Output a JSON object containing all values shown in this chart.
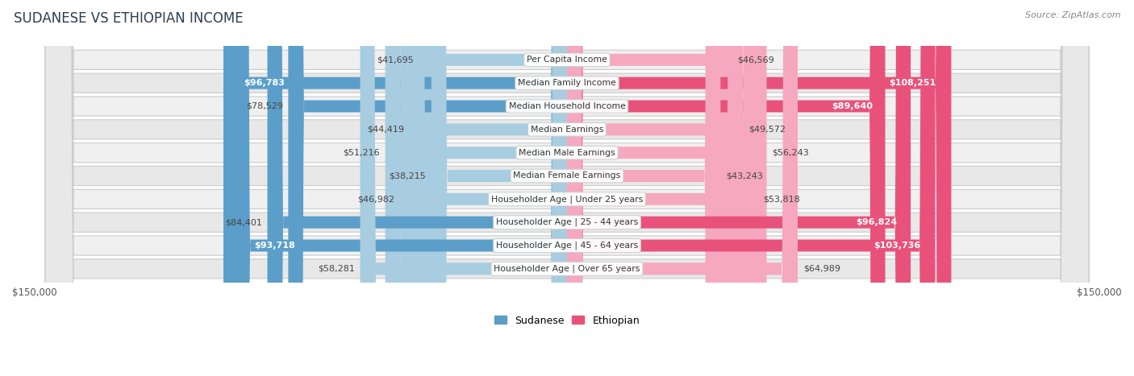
{
  "title": "SUDANESE VS ETHIOPIAN INCOME",
  "source": "Source: ZipAtlas.com",
  "categories": [
    "Per Capita Income",
    "Median Family Income",
    "Median Household Income",
    "Median Earnings",
    "Median Male Earnings",
    "Median Female Earnings",
    "Householder Age | Under 25 years",
    "Householder Age | 25 - 44 years",
    "Householder Age | 45 - 64 years",
    "Householder Age | Over 65 years"
  ],
  "sudanese": [
    41695,
    96783,
    78529,
    44419,
    51216,
    38215,
    46982,
    84401,
    93718,
    58281
  ],
  "ethiopian": [
    46569,
    108251,
    89640,
    49572,
    56243,
    43243,
    53818,
    96824,
    103736,
    64989
  ],
  "sudanese_labels": [
    "$41,695",
    "$96,783",
    "$78,529",
    "$44,419",
    "$51,216",
    "$38,215",
    "$46,982",
    "$84,401",
    "$93,718",
    "$58,281"
  ],
  "ethiopian_labels": [
    "$46,569",
    "$108,251",
    "$89,640",
    "$49,572",
    "$56,243",
    "$43,243",
    "$53,818",
    "$96,824",
    "$103,736",
    "$64,989"
  ],
  "sud_inside": [
    false,
    true,
    false,
    false,
    false,
    false,
    false,
    false,
    true,
    false
  ],
  "eth_inside": [
    false,
    true,
    true,
    false,
    false,
    false,
    false,
    true,
    true,
    false
  ],
  "max_val": 150000,
  "sudanese_color_light": "#a8cce0",
  "sudanese_color_dark": "#5b9ec9",
  "ethiopian_color_light": "#f5a8c0",
  "ethiopian_color_dark": "#e8527a",
  "row_bg_even": "#f0f0f0",
  "row_bg_odd": "#e8e8e8",
  "title_color": "#2c3e50",
  "source_color": "#888888",
  "label_outside_color": "#444444",
  "label_inside_color": "#ffffff",
  "cat_label_color": "#333333",
  "cat_bg_color": "#ffffff",
  "cat_border_color": "#d0d0d0"
}
